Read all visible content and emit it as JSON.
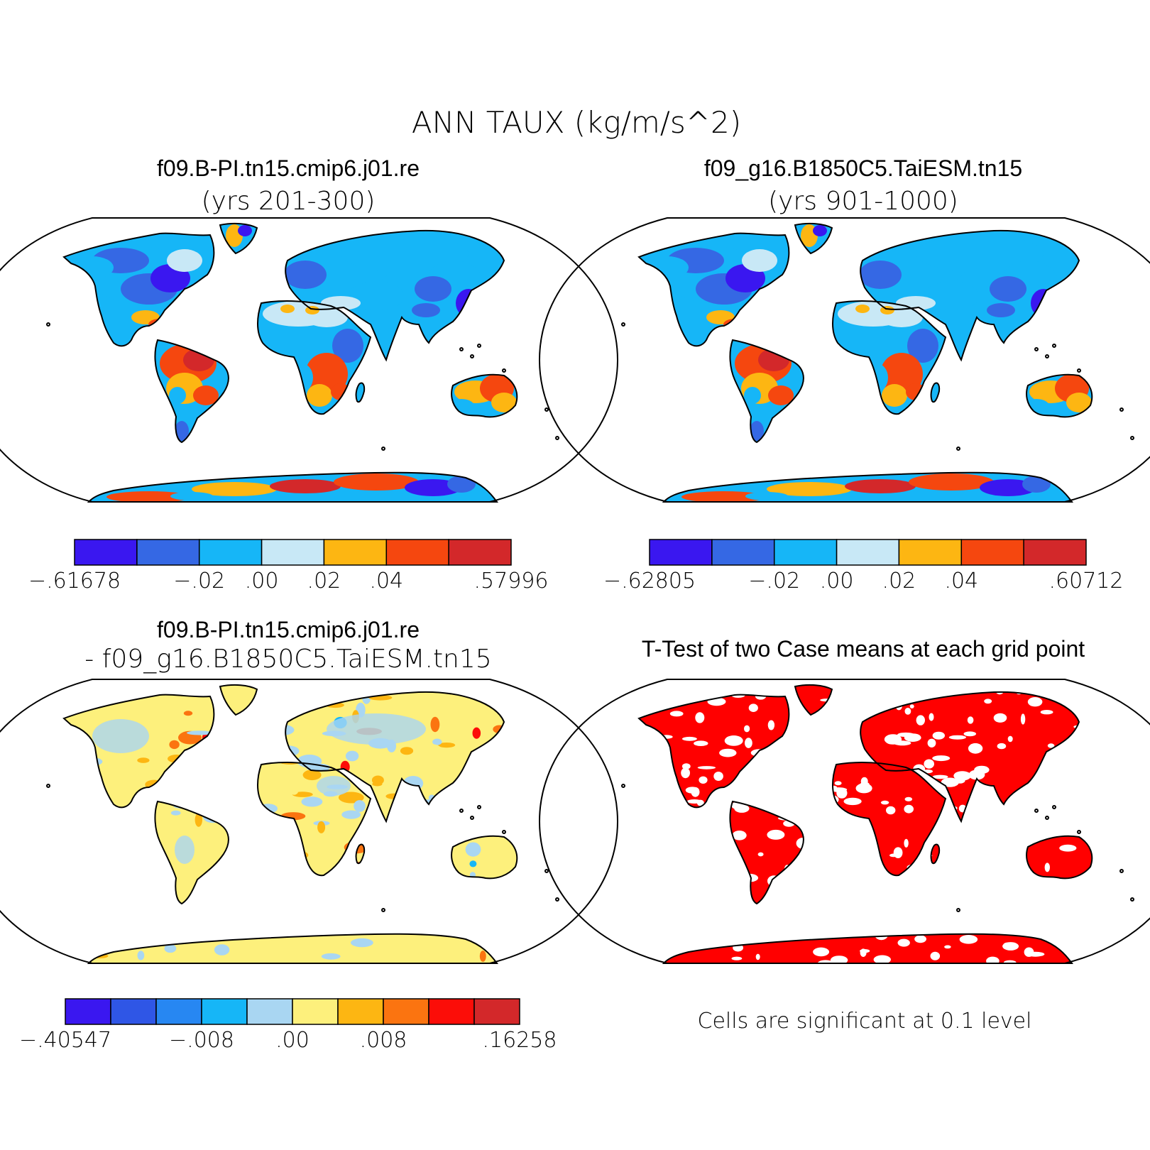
{
  "main_title": "ANN TAUX (kg/m/s^2)",
  "panels": [
    {
      "title_line1": "f09.B-PI.tn15.cmip6.j01.re",
      "title_line2": "(yrs 201-300)",
      "colorbar": {
        "colors": [
          "#3a17f0",
          "#3568e4",
          "#16b6f7",
          "#c8e8f6",
          "#fdb612",
          "#f5470f",
          "#d3282a"
        ],
        "tick_labels": [
          "-.61678",
          "-.02",
          ".00",
          ".02",
          ".04",
          ".57996"
        ]
      }
    },
    {
      "title_line1": "f09_g16.B1850C5.TaiESM.tn15",
      "title_line2": "(yrs 901-1000)",
      "colorbar": {
        "colors": [
          "#3a17f0",
          "#3568e4",
          "#16b6f7",
          "#c8e8f6",
          "#fdb612",
          "#f5470f",
          "#d3282a"
        ],
        "tick_labels": [
          "-.62805",
          "-.02",
          ".00",
          ".02",
          ".04",
          ".60712"
        ]
      }
    },
    {
      "title_line1": "f09.B-PI.tn15.cmip6.j01.re",
      "title_line2": "- f09_g16.B1850C5.TaiESM.tn15",
      "colorbar": {
        "colors": [
          "#3a17f0",
          "#2f56e6",
          "#2787f2",
          "#16b6f7",
          "#a9d6f2",
          "#fdf07c",
          "#fdb612",
          "#fb7410",
          "#fc0d08",
          "#d3282a"
        ],
        "tick_labels": [
          "-.40547",
          "-.008",
          ".00",
          ".008",
          ".16258"
        ]
      }
    },
    {
      "title_line1": "T-Test of two Case means at each grid point",
      "note": "Cells are significant at 0.1 level"
    }
  ],
  "chart_data": [
    {
      "type": "heatmap",
      "title": "ANN TAUX (kg/m/s^2)",
      "subtitle": "f09.B-PI.tn15.cmip6.j01.re (yrs 201-300)",
      "legend_boundaries": [
        -0.61678,
        -0.02,
        0.0,
        0.02,
        0.04,
        0.57996
      ],
      "legend_placement": "bottom"
    },
    {
      "type": "heatmap",
      "title": "ANN TAUX (kg/m/s^2)",
      "subtitle": "f09_g16.B1850C5.TaiESM.tn15 (yrs 901-1000)",
      "legend_boundaries": [
        -0.62805,
        -0.02,
        0.0,
        0.02,
        0.04,
        0.60712
      ],
      "legend_placement": "bottom"
    },
    {
      "type": "heatmap",
      "title": "ANN TAUX (kg/m/s^2)",
      "subtitle": "f09.B-PI.tn15.cmip6.j01.re - f09_g16.B1850C5.TaiESM.tn15",
      "legend_boundaries": [
        -0.40547,
        -0.008,
        0.0,
        0.008,
        0.16258
      ],
      "legend_placement": "bottom"
    },
    {
      "type": "heatmap",
      "title": "T-Test of two Case means at each grid point",
      "significance_level": 0.1,
      "significant_color": "#ff0000"
    }
  ]
}
